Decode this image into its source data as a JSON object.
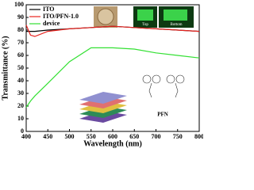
{
  "chart_data": {
    "type": "line",
    "x_label": "Wavelength (nm)",
    "y_label": "Transmittance (%)",
    "x": [
      400,
      410,
      420,
      450,
      500,
      550,
      600,
      650,
      700,
      750,
      800
    ],
    "series": [
      {
        "name": "ITO",
        "color": "#000000",
        "values": [
          79,
          79,
          79,
          80,
          81,
          82,
          83,
          82,
          81,
          80,
          79
        ]
      },
      {
        "name": "ITO/PFN-1.0",
        "color": "#e8231f",
        "values": [
          84,
          76,
          75,
          79,
          81,
          82,
          83,
          82,
          81,
          80,
          79
        ]
      },
      {
        "name": "device",
        "color": "#33e033",
        "values": [
          19,
          24,
          28,
          38,
          55,
          66,
          66,
          65,
          62,
          60,
          58
        ]
      }
    ],
    "xlim": [
      400,
      800
    ],
    "xticks": [
      400,
      450,
      500,
      550,
      600,
      650,
      700,
      750,
      800
    ],
    "ylim": [
      0,
      100
    ],
    "yticks": [
      0,
      10,
      20,
      30,
      40,
      50,
      60,
      70,
      80,
      90,
      100
    ],
    "legend": "upper-left",
    "annotations": [
      "Top",
      "Bottom",
      "PFN"
    ]
  }
}
